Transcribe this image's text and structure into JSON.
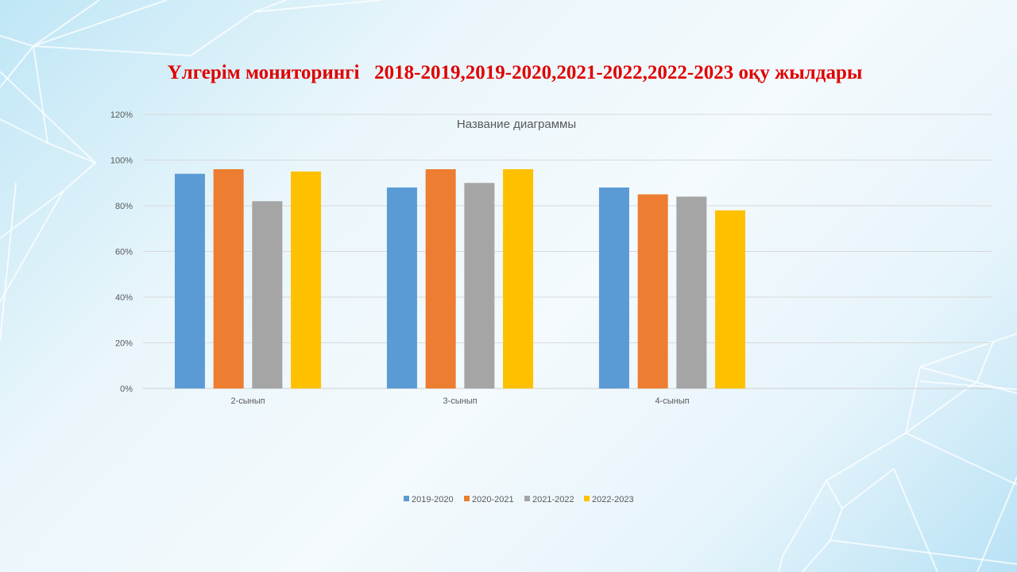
{
  "slide": {
    "title": "Үлгерім мониторингі   2018-2019,2019-2020,2021-2022,2022-2023 оқу жылдары"
  },
  "chart_data": {
    "type": "bar",
    "title": "Название диаграммы",
    "categories": [
      "2-сынып",
      "3-сынып",
      "4-сынып"
    ],
    "series": [
      {
        "name": "2019-2020",
        "color": "#5b9bd5",
        "values": [
          94,
          88,
          88
        ]
      },
      {
        "name": "2020-2021",
        "color": "#ed7d31",
        "values": [
          96,
          96,
          85
        ]
      },
      {
        "name": "2021-2022",
        "color": "#a5a5a5",
        "values": [
          82,
          90,
          84
        ]
      },
      {
        "name": "2022-2023",
        "color": "#ffc000",
        "values": [
          95,
          96,
          78
        ]
      }
    ],
    "ylim": [
      0,
      120
    ],
    "yticks": [
      "0%",
      "20%",
      "40%",
      "60%",
      "80%",
      "100%",
      "120%"
    ],
    "unit": "%",
    "grid": true,
    "legend": "bottom",
    "xlabel": "",
    "ylabel": ""
  }
}
